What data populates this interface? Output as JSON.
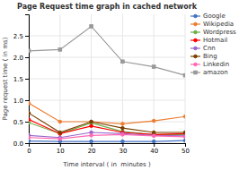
{
  "chart_data": {
    "type": "line",
    "title": "Page Request time graph in cached network",
    "x_label": "Time interval ( in  minutes )",
    "y_label": "Page request time ( in ms)",
    "x": [
      0,
      10,
      20,
      30,
      40,
      50
    ],
    "series": [
      {
        "name": "Google",
        "color": "#4472C4",
        "marker": "circle",
        "line_style": "solid",
        "values": [
          0.05,
          0.04,
          0.04,
          0.04,
          0.04,
          0.06
        ]
      },
      {
        "name": "Wikipedia",
        "color": "#ED7D31",
        "marker": "circle",
        "line_style": "solid",
        "values": [
          0.93,
          0.5,
          0.5,
          0.45,
          0.52,
          0.62
        ]
      },
      {
        "name": "Wordpress",
        "color": "#70AD47",
        "marker": "circle",
        "line_style": "solid",
        "values": [
          0.48,
          0.22,
          0.47,
          0.27,
          0.2,
          0.2
        ]
      },
      {
        "name": "Hotmail",
        "color": "#FF0000",
        "marker": "circle",
        "line_style": "solid",
        "values": [
          0.55,
          0.22,
          0.4,
          0.25,
          0.2,
          0.22
        ]
      },
      {
        "name": "Cnn",
        "color": "#9966CC",
        "marker": "circle",
        "line_style": "solid",
        "values": [
          0.18,
          0.13,
          0.25,
          0.22,
          0.18,
          0.17
        ]
      },
      {
        "name": "Bing",
        "color": "#7B3F00",
        "marker": "circle",
        "line_style": "solid",
        "values": [
          0.7,
          0.25,
          0.5,
          0.35,
          0.25,
          0.25
        ]
      },
      {
        "name": "Linkedin",
        "color": "#FF69B4",
        "marker": "circle",
        "line_style": "solid",
        "values": [
          0.13,
          0.1,
          0.18,
          0.2,
          0.17,
          0.15
        ]
      },
      {
        "name": "amazon",
        "color": "#999999",
        "marker": "square",
        "line_style": "solid",
        "values": [
          2.15,
          2.18,
          2.72,
          1.9,
          1.78,
          1.58
        ]
      }
    ],
    "xlim": [
      0,
      50
    ],
    "ylim": [
      0,
      3.0
    ],
    "xticks": [
      0,
      10,
      20,
      30,
      40,
      50
    ],
    "yticks": [
      {
        "value": 0.0,
        "label": "0.0"
      },
      0.5,
      {
        "value": 1.0,
        "label": "1.0"
      },
      1.5,
      {
        "value": 2.0,
        "label": "2.0"
      },
      2.5
    ],
    "grid": true,
    "legend": "right"
  }
}
